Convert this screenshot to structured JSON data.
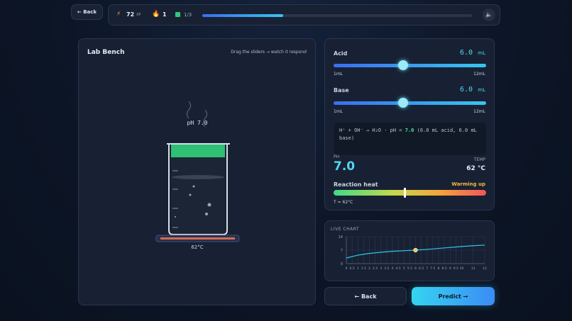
{
  "header": {
    "back": "← Back",
    "xp": "72",
    "xp_unit": "XP",
    "streak": "1",
    "progress": "1/3"
  },
  "lab_bench": {
    "title": "Lab Bench",
    "hint": "Drag the sliders → watch it respond",
    "beaker_label": "pH 7.0",
    "plate_temp": "62°C"
  },
  "controls": {
    "sliders": [
      {
        "label": "Acid",
        "value": "6.0",
        "unit": "mL",
        "min": "1mL",
        "max": "12mL"
      },
      {
        "label": "Base",
        "value": "6.0",
        "unit": "mL",
        "min": "1mL",
        "max": "12mL"
      }
    ],
    "equation": {
      "formula": "H⁺ + OH⁻ → H₂O · pH =",
      "ph": "7.0",
      "detail": "(6.0 mL acid, 6.0 mL base)"
    },
    "ph": {
      "label": "PH",
      "value": "7.0"
    },
    "temp": {
      "label": "TEMP",
      "value": "62 °C"
    },
    "heat": {
      "label": "Reaction heat",
      "status": "Warming up",
      "readout": "T = 62°C"
    }
  },
  "live_chart": {
    "title": "LIVE CHART",
    "type": "line",
    "color": "#2ec8e8",
    "x": [
      0,
      1,
      2,
      3,
      4,
      5,
      6,
      7,
      8,
      9,
      10,
      11,
      12
    ],
    "y": [
      2.9,
      4.4,
      5.3,
      5.9,
      6.4,
      6.7,
      7.0,
      7.4,
      7.9,
      8.4,
      8.9,
      9.3,
      9.6
    ],
    "xlim": [
      0,
      12
    ],
    "ylim": [
      0,
      14
    ],
    "xticks": [
      0,
      0.5,
      1,
      1.5,
      2,
      2.5,
      3,
      3.5,
      4,
      4.5,
      5,
      5.5,
      6,
      6.5,
      7,
      7.5,
      8,
      8.5,
      9,
      9.5,
      10,
      11,
      12
    ],
    "yticks": [
      0,
      7,
      14
    ],
    "grid": true,
    "marker": {
      "x": 6,
      "y": 7,
      "color": "#f5c24a"
    }
  },
  "footer": {
    "back": "← Back",
    "next": "Predict →"
  }
}
